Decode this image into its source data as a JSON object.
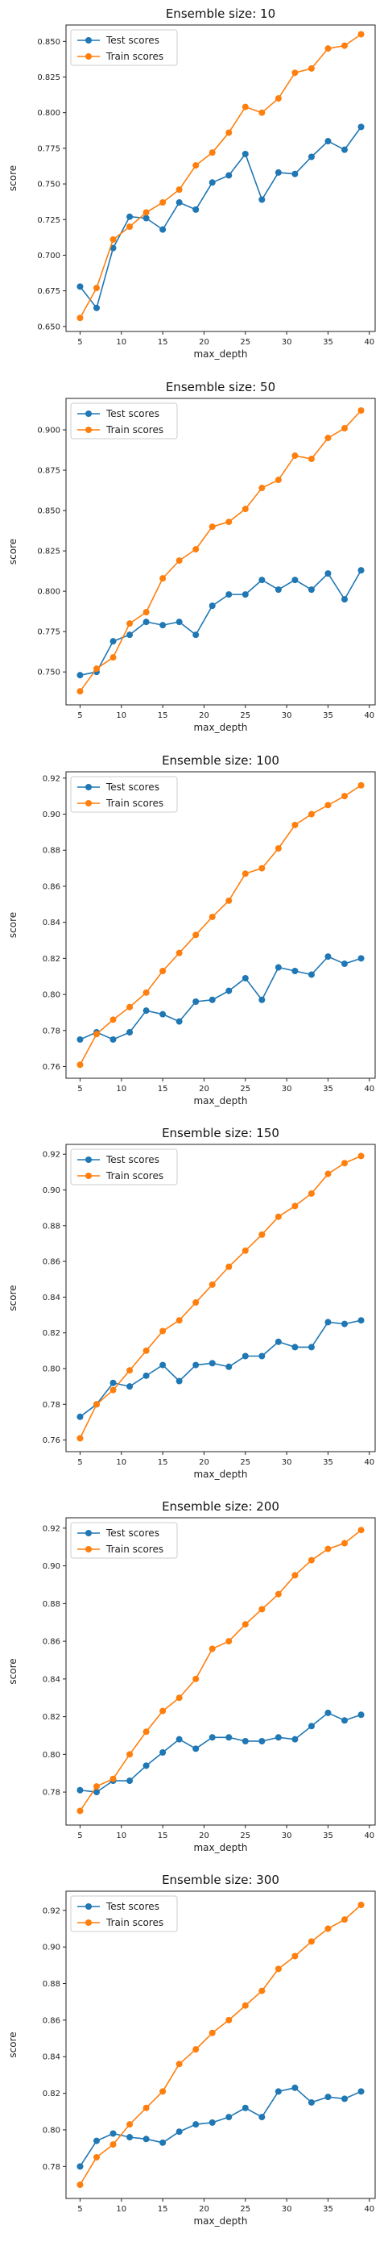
{
  "colors": {
    "test": "#1f77b4",
    "train": "#ff7f0e"
  },
  "chart_data": [
    {
      "type": "line",
      "title": "Ensemble size: 10",
      "xlabel": "max_depth",
      "ylabel": "score",
      "x": [
        5,
        7,
        9,
        11,
        13,
        15,
        17,
        19,
        21,
        23,
        25,
        27,
        29,
        31,
        33,
        35,
        37,
        39
      ],
      "xticks": [
        5,
        10,
        15,
        20,
        25,
        30,
        35,
        40
      ],
      "xtick_labels": [
        "5",
        "10",
        "15",
        "20",
        "25",
        "30",
        "35",
        "40"
      ],
      "xlim": [
        3.3,
        40.7
      ],
      "yticks": [
        0.65,
        0.675,
        0.7,
        0.725,
        0.75,
        0.775,
        0.8,
        0.825,
        0.85
      ],
      "ytick_labels": [
        "0.650",
        "0.675",
        "0.700",
        "0.725",
        "0.750",
        "0.775",
        "0.800",
        "0.825",
        "0.850"
      ],
      "ylim": [
        0.6465,
        0.8615
      ],
      "legend": "upper-left",
      "series": [
        {
          "name": "Test scores",
          "values": [
            0.678,
            0.663,
            0.705,
            0.727,
            0.726,
            0.718,
            0.737,
            0.732,
            0.751,
            0.756,
            0.771,
            0.739,
            0.758,
            0.757,
            0.769,
            0.78,
            0.774,
            0.79
          ]
        },
        {
          "name": "Train scores",
          "values": [
            0.656,
            0.677,
            0.711,
            0.72,
            0.73,
            0.737,
            0.746,
            0.763,
            0.772,
            0.786,
            0.804,
            0.8,
            0.81,
            0.828,
            0.831,
            0.845,
            0.847,
            0.855
          ]
        }
      ]
    },
    {
      "type": "line",
      "title": "Ensemble size: 50",
      "xlabel": "max_depth",
      "ylabel": "score",
      "x": [
        5,
        7,
        9,
        11,
        13,
        15,
        17,
        19,
        21,
        23,
        25,
        27,
        29,
        31,
        33,
        35,
        37,
        39
      ],
      "xticks": [
        5,
        10,
        15,
        20,
        25,
        30,
        35,
        40
      ],
      "xtick_labels": [
        "5",
        "10",
        "15",
        "20",
        "25",
        "30",
        "35",
        "40"
      ],
      "xlim": [
        3.3,
        40.7
      ],
      "yticks": [
        0.75,
        0.775,
        0.8,
        0.825,
        0.85,
        0.875,
        0.9
      ],
      "ytick_labels": [
        "0.750",
        "0.775",
        "0.800",
        "0.825",
        "0.850",
        "0.875",
        "0.900"
      ],
      "ylim": [
        0.7296,
        0.9195
      ],
      "legend": "upper-left",
      "series": [
        {
          "name": "Test scores",
          "values": [
            0.748,
            0.75,
            0.769,
            0.773,
            0.781,
            0.779,
            0.781,
            0.773,
            0.791,
            0.798,
            0.798,
            0.807,
            0.801,
            0.807,
            0.801,
            0.811,
            0.795,
            0.813
          ]
        },
        {
          "name": "Train scores",
          "values": [
            0.738,
            0.752,
            0.759,
            0.78,
            0.787,
            0.808,
            0.819,
            0.826,
            0.84,
            0.843,
            0.851,
            0.864,
            0.869,
            0.884,
            0.882,
            0.895,
            0.901,
            0.912
          ]
        }
      ]
    },
    {
      "type": "line",
      "title": "Ensemble size: 100",
      "xlabel": "max_depth",
      "ylabel": "score",
      "x": [
        5,
        7,
        9,
        11,
        13,
        15,
        17,
        19,
        21,
        23,
        25,
        27,
        29,
        31,
        33,
        35,
        37,
        39
      ],
      "xticks": [
        5,
        10,
        15,
        20,
        25,
        30,
        35,
        40
      ],
      "xtick_labels": [
        "5",
        "10",
        "15",
        "20",
        "25",
        "30",
        "35",
        "40"
      ],
      "xlim": [
        3.3,
        40.7
      ],
      "yticks": [
        0.76,
        0.78,
        0.8,
        0.82,
        0.84,
        0.86,
        0.88,
        0.9,
        0.92
      ],
      "ytick_labels": [
        "0.76",
        "0.78",
        "0.80",
        "0.82",
        "0.84",
        "0.86",
        "0.88",
        "0.90",
        "0.92"
      ],
      "ylim": [
        0.7535,
        0.9235
      ],
      "legend": "upper-left",
      "series": [
        {
          "name": "Test scores",
          "values": [
            0.775,
            0.779,
            0.775,
            0.779,
            0.791,
            0.789,
            0.785,
            0.796,
            0.797,
            0.802,
            0.809,
            0.797,
            0.815,
            0.813,
            0.811,
            0.821,
            0.817,
            0.82
          ]
        },
        {
          "name": "Train scores",
          "values": [
            0.761,
            0.778,
            0.786,
            0.793,
            0.801,
            0.813,
            0.823,
            0.833,
            0.843,
            0.852,
            0.867,
            0.87,
            0.881,
            0.894,
            0.9,
            0.905,
            0.91,
            0.916
          ]
        }
      ]
    },
    {
      "type": "line",
      "title": "Ensemble size: 150",
      "xlabel": "max_depth",
      "ylabel": "score",
      "x": [
        5,
        7,
        9,
        11,
        13,
        15,
        17,
        19,
        21,
        23,
        25,
        27,
        29,
        31,
        33,
        35,
        37,
        39
      ],
      "xticks": [
        5,
        10,
        15,
        20,
        25,
        30,
        35,
        40
      ],
      "xtick_labels": [
        "5",
        "10",
        "15",
        "20",
        "25",
        "30",
        "35",
        "40"
      ],
      "xlim": [
        3.3,
        40.7
      ],
      "yticks": [
        0.76,
        0.78,
        0.8,
        0.82,
        0.84,
        0.86,
        0.88,
        0.9,
        0.92
      ],
      "ytick_labels": [
        "0.76",
        "0.78",
        "0.80",
        "0.82",
        "0.84",
        "0.86",
        "0.88",
        "0.90",
        "0.92"
      ],
      "ylim": [
        0.7535,
        0.9255
      ],
      "legend": "upper-left",
      "series": [
        {
          "name": "Test scores",
          "values": [
            0.773,
            0.78,
            0.792,
            0.79,
            0.796,
            0.802,
            0.793,
            0.802,
            0.803,
            0.801,
            0.807,
            0.807,
            0.815,
            0.812,
            0.812,
            0.826,
            0.825,
            0.827
          ]
        },
        {
          "name": "Train scores",
          "values": [
            0.761,
            0.78,
            0.788,
            0.799,
            0.81,
            0.821,
            0.827,
            0.837,
            0.847,
            0.857,
            0.866,
            0.875,
            0.885,
            0.891,
            0.898,
            0.909,
            0.915,
            0.919
          ]
        }
      ]
    },
    {
      "type": "line",
      "title": "Ensemble size: 200",
      "xlabel": "max_depth",
      "ylabel": "score",
      "x": [
        5,
        7,
        9,
        11,
        13,
        15,
        17,
        19,
        21,
        23,
        25,
        27,
        29,
        31,
        33,
        35,
        37,
        39
      ],
      "xticks": [
        5,
        10,
        15,
        20,
        25,
        30,
        35,
        40
      ],
      "xtick_labels": [
        "5",
        "10",
        "15",
        "20",
        "25",
        "30",
        "35",
        "40"
      ],
      "xlim": [
        3.3,
        40.7
      ],
      "yticks": [
        0.78,
        0.8,
        0.82,
        0.84,
        0.86,
        0.88,
        0.9,
        0.92
      ],
      "ytick_labels": [
        "0.78",
        "0.80",
        "0.82",
        "0.84",
        "0.86",
        "0.88",
        "0.90",
        "0.92"
      ],
      "ylim": [
        0.7625,
        0.9255
      ],
      "legend": "upper-left",
      "series": [
        {
          "name": "Test scores",
          "values": [
            0.781,
            0.78,
            0.786,
            0.786,
            0.794,
            0.801,
            0.808,
            0.803,
            0.809,
            0.809,
            0.807,
            0.807,
            0.809,
            0.808,
            0.815,
            0.822,
            0.818,
            0.821
          ]
        },
        {
          "name": "Train scores",
          "values": [
            0.77,
            0.783,
            0.787,
            0.8,
            0.812,
            0.823,
            0.83,
            0.84,
            0.856,
            0.86,
            0.869,
            0.877,
            0.885,
            0.895,
            0.903,
            0.909,
            0.912,
            0.919
          ]
        }
      ]
    },
    {
      "type": "line",
      "title": "Ensemble size: 300",
      "xlabel": "max_depth",
      "ylabel": "score",
      "x": [
        5,
        7,
        9,
        11,
        13,
        15,
        17,
        19,
        21,
        23,
        25,
        27,
        29,
        31,
        33,
        35,
        37,
        39
      ],
      "xticks": [
        5,
        10,
        15,
        20,
        25,
        30,
        35,
        40
      ],
      "xtick_labels": [
        "5",
        "10",
        "15",
        "20",
        "25",
        "30",
        "35",
        "40"
      ],
      "xlim": [
        3.3,
        40.7
      ],
      "yticks": [
        0.78,
        0.8,
        0.82,
        0.84,
        0.86,
        0.88,
        0.9,
        0.92
      ],
      "ytick_labels": [
        "0.78",
        "0.80",
        "0.82",
        "0.84",
        "0.86",
        "0.88",
        "0.90",
        "0.92"
      ],
      "ylim": [
        0.7625,
        0.9305
      ],
      "legend": "upper-left",
      "series": [
        {
          "name": "Test scores",
          "values": [
            0.78,
            0.794,
            0.798,
            0.796,
            0.795,
            0.793,
            0.799,
            0.803,
            0.804,
            0.807,
            0.812,
            0.807,
            0.821,
            0.823,
            0.815,
            0.818,
            0.817,
            0.821
          ]
        },
        {
          "name": "Train scores",
          "values": [
            0.77,
            0.785,
            0.792,
            0.803,
            0.812,
            0.821,
            0.836,
            0.844,
            0.853,
            0.86,
            0.868,
            0.876,
            0.888,
            0.895,
            0.903,
            0.91,
            0.915,
            0.923
          ]
        }
      ]
    }
  ]
}
